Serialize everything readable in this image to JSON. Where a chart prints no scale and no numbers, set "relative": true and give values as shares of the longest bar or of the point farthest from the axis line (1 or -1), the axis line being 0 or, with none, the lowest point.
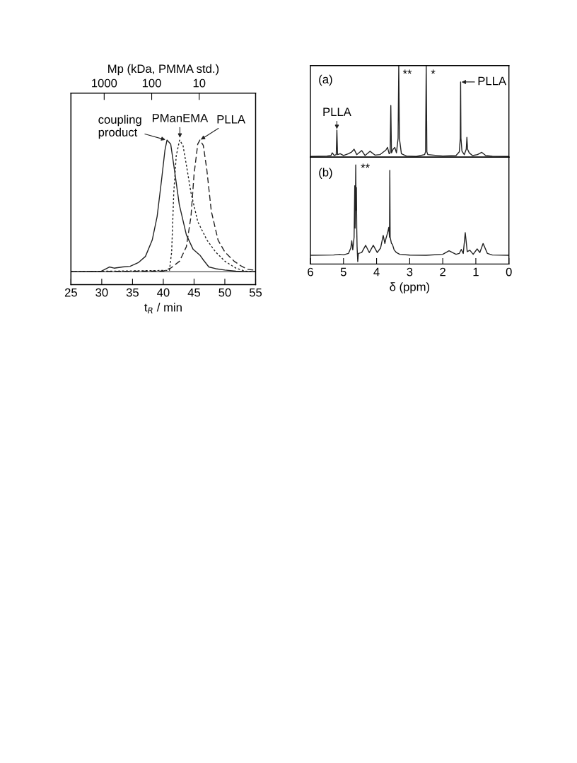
{
  "chart_data": [
    {
      "type": "line",
      "relative": true,
      "xlabel": "t$_{R}$ / min",
      "x2label": "Mp (kDa, PMMA std.)",
      "xlim": [
        25,
        55
      ],
      "xticks": [
        25,
        30,
        35,
        40,
        45,
        50,
        55
      ],
      "log": "x2",
      "x2lim": [
        5000,
        0.65
      ],
      "x2ticks": [
        1000,
        100,
        10
      ],
      "ref_lines": [
        {
          "axis": "y",
          "value": 0,
          "color": "#222222"
        }
      ],
      "series": [
        {
          "color": "#222222",
          "line_style": "solid",
          "x": [
            25,
            29.8,
            31.25,
            32.0,
            33.4,
            34.6,
            36.0,
            37.1,
            38.2,
            39.0,
            39.7,
            40.26,
            40.6,
            41.2,
            41.7,
            42.6,
            43.75,
            44.85,
            45.96,
            46.5,
            47.4,
            48.5,
            50,
            51.8,
            53.7,
            55
          ],
          "values": [
            0,
            0,
            0.036,
            0.027,
            0.036,
            0.041,
            0.071,
            0.116,
            0.24,
            0.42,
            0.69,
            0.92,
            1.0,
            0.97,
            0.81,
            0.51,
            0.28,
            0.17,
            0.125,
            0.09,
            0.036,
            0.023,
            0.0125,
            0.004,
            0,
            0
          ]
        },
        {
          "color": "#222222",
          "line_style": "dotted",
          "x": [
            25,
            41.0,
            41.36,
            41.7,
            42.1,
            42.65,
            43.2,
            43.75,
            44.5,
            45.6,
            47.1,
            48.5,
            50,
            51.8,
            53.3,
            55
          ],
          "values": [
            0,
            0.01,
            0.15,
            0.6,
            0.88,
            1.0,
            0.96,
            0.81,
            0.6,
            0.38,
            0.24,
            0.15,
            0.08,
            0.027,
            0.004,
            0
          ]
        },
        {
          "color": "#222222",
          "line_style": "dashed",
          "x": [
            25,
            40.0,
            41.2,
            42.65,
            43.75,
            44.5,
            45.0,
            45.6,
            45.95,
            46.5,
            47.06,
            47.8,
            48.9,
            50,
            51.5,
            52.6,
            53.7,
            55
          ],
          "values": [
            0,
            0.005,
            0.027,
            0.08,
            0.19,
            0.42,
            0.74,
            0.97,
            1.0,
            0.96,
            0.78,
            0.46,
            0.24,
            0.15,
            0.08,
            0.045,
            0.018,
            0.01
          ]
        }
      ],
      "annotations": [
        {
          "text": "coupling\nproduct",
          "x": 40.5,
          "y": 1.0
        },
        {
          "text": "PManEMA",
          "x": 42.7,
          "y": 1.01
        },
        {
          "text": "PLLA",
          "x": 45.95,
          "y": 1.0
        }
      ]
    },
    {
      "type": "line",
      "relative": true,
      "xlim": [
        6,
        0
      ],
      "tick_labels": false,
      "series": [
        {
          "color": "#222222",
          "line_style": "solid",
          "x": [
            6.0,
            5.5,
            5.38,
            5.34,
            5.28,
            5.22,
            5.2,
            5.18,
            5.1,
            5.0,
            4.85,
            4.75,
            4.68,
            4.6,
            4.45,
            4.35,
            4.2,
            4.05,
            3.9,
            3.72,
            3.67,
            3.62,
            3.59,
            3.57,
            3.55,
            3.5,
            3.45,
            3.4,
            3.35,
            3.33,
            3.31,
            3.25,
            3.1,
            2.8,
            2.55,
            2.52,
            2.5,
            2.48,
            2.45,
            2.0,
            1.6,
            1.5,
            1.47,
            1.46,
            1.45,
            1.42,
            1.35,
            1.29,
            1.27,
            1.25,
            1.2,
            1.1,
            0.95,
            0.82,
            0.7,
            0.5,
            0
          ],
          "values": [
            0,
            0.005,
            0.01,
            0.04,
            0.01,
            0.02,
            0.29,
            0.02,
            0.03,
            0.01,
            0.03,
            0.05,
            0.08,
            0.02,
            0.065,
            0.01,
            0.057,
            0.015,
            0.02,
            0.07,
            0.1,
            0.03,
            0.04,
            0.56,
            0.04,
            0.08,
            0.1,
            0.04,
            0.2,
            1.0,
            0.2,
            0.03,
            0.005,
            0,
            0.02,
            0.05,
            1.0,
            0.05,
            0.02,
            0.005,
            0.01,
            0.05,
            0.2,
            0.82,
            0.2,
            0.06,
            0.02,
            0.08,
            0.21,
            0.08,
            0.04,
            0.01,
            0.02,
            0.045,
            0.01,
            0.003,
            0
          ]
        }
      ],
      "annotations": [
        "(a)",
        {
          "text": "**",
          "x": 3.33,
          "y": 1.0
        },
        {
          "text": "*",
          "x": 2.5,
          "y": 1.0
        },
        {
          "text": "PLLA",
          "x": 5.2,
          "y": 0.29
        },
        {
          "text": "PLLA",
          "x": 1.46,
          "y": 0.82
        }
      ]
    },
    {
      "type": "line",
      "relative": true,
      "xlim": [
        6,
        0
      ],
      "xticks": [
        6,
        5,
        4,
        3,
        2,
        1,
        0
      ],
      "xlabel": "δ (ppm)",
      "tick_labels": "x",
      "series": [
        {
          "color": "#222222",
          "line_style": "solid",
          "x": [
            6.0,
            5.3,
            5.12,
            5.0,
            4.85,
            4.78,
            4.75,
            4.72,
            4.68,
            4.66,
            4.65,
            4.64,
            4.63,
            4.62,
            4.61,
            4.6,
            4.59,
            4.57,
            4.55,
            4.45,
            4.33,
            4.22,
            4.1,
            3.98,
            3.88,
            3.8,
            3.75,
            3.72,
            3.66,
            3.63,
            3.61,
            3.6,
            3.59,
            3.55,
            3.52,
            3.47,
            3.4,
            3.3,
            3.0,
            2.5,
            2.0,
            1.81,
            1.6,
            1.5,
            1.44,
            1.38,
            1.32,
            1.26,
            1.18,
            1.08,
            0.96,
            0.88,
            0.78,
            0.65,
            0.5,
            0
          ],
          "values": [
            0.065,
            0.068,
            0.075,
            0.07,
            0.084,
            0.14,
            0.215,
            0.121,
            0.252,
            0.785,
            0.346,
            0.533,
            1.0,
            0.533,
            0.766,
            0.346,
            0.159,
            0,
            0.084,
            0.093,
            0.168,
            0.093,
            0.168,
            0.093,
            0.14,
            0.271,
            0.187,
            0.234,
            0.308,
            0.355,
            0.252,
            0.944,
            0.252,
            0.187,
            0.178,
            0.121,
            0.093,
            0.075,
            0.067,
            0.065,
            0.075,
            0.112,
            0.075,
            0.084,
            0.126,
            0.084,
            0.299,
            0.103,
            0.117,
            0.075,
            0.131,
            0.093,
            0.187,
            0.084,
            0.068,
            0.065
          ]
        }
      ],
      "annotations": [
        "(b)",
        {
          "text": "**",
          "x": 4.63,
          "y": 1.0
        }
      ]
    }
  ]
}
